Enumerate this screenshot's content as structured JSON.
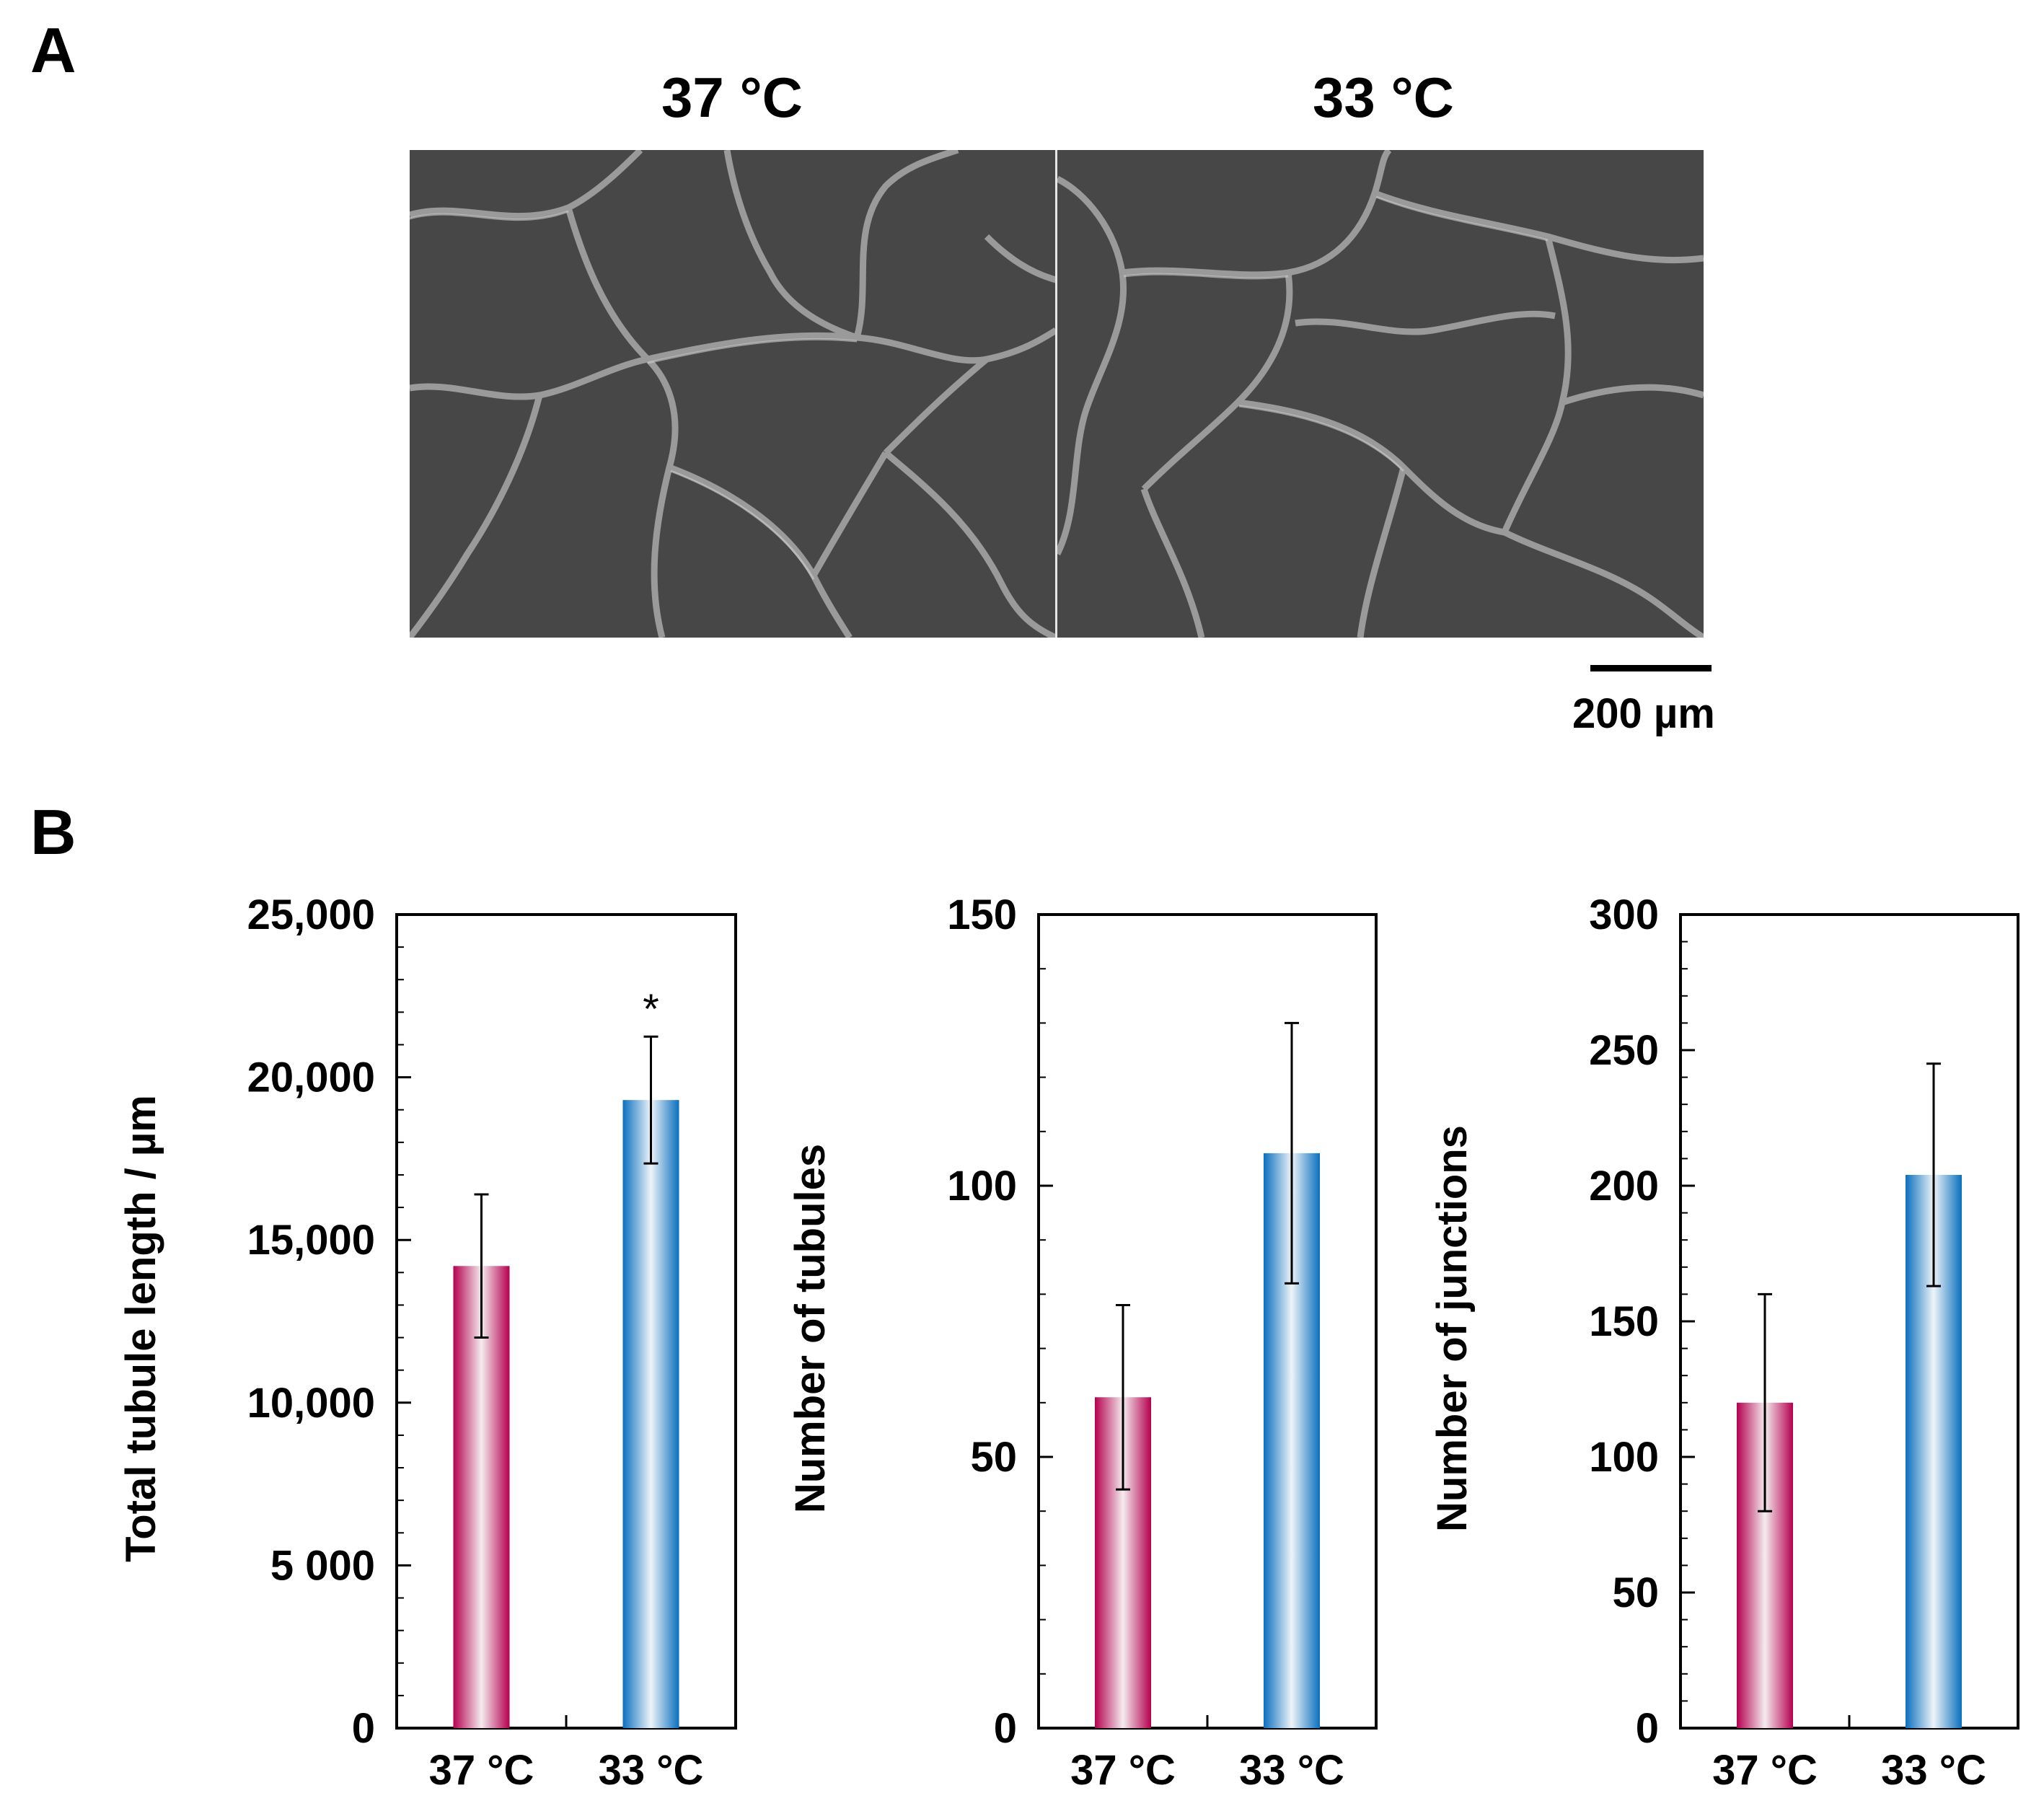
{
  "panel_a": {
    "letter": "A",
    "images": [
      {
        "label": "37 °C",
        "description": "micrograph-37"
      },
      {
        "label": "33 °C",
        "description": "micrograph-33"
      }
    ],
    "scale_bar_label": "200 µm"
  },
  "panel_b": {
    "letter": "B"
  },
  "colors": {
    "red": "#b5004f",
    "blue": "#0a6fbf",
    "axis": "#000000"
  },
  "chart_data": [
    {
      "type": "bar",
      "ylabel": "Total tubule length / µm",
      "categories": [
        "37 °C",
        "33 °C"
      ],
      "values": [
        14200,
        19300
      ],
      "errors": [
        2200,
        1950
      ],
      "ylim": [
        0,
        25000
      ],
      "yticks": [
        0,
        5000,
        10000,
        15000,
        20000,
        25000
      ],
      "ytick_labels": [
        "0",
        "5 000",
        "10,000",
        "15,000",
        "20,000",
        "25,000"
      ],
      "minor_step": 1000,
      "annotations": [
        "",
        "*"
      ]
    },
    {
      "type": "bar",
      "ylabel": "Number of tubules",
      "categories": [
        "37 °C",
        "33 °C"
      ],
      "values": [
        61,
        106
      ],
      "errors": [
        17,
        24
      ],
      "ylim": [
        0,
        150
      ],
      "yticks": [
        0,
        50,
        100,
        150
      ],
      "ytick_labels": [
        "0",
        "50",
        "100",
        "150"
      ],
      "minor_step": 10,
      "annotations": [
        "",
        ""
      ]
    },
    {
      "type": "bar",
      "ylabel": "Number of junctions",
      "categories": [
        "37 °C",
        "33 °C"
      ],
      "values": [
        120,
        204
      ],
      "errors": [
        40,
        41
      ],
      "ylim": [
        0,
        300
      ],
      "yticks": [
        0,
        50,
        100,
        150,
        200,
        250,
        300
      ],
      "ytick_labels": [
        "0",
        "50",
        "100",
        "150",
        "200",
        "250",
        "300"
      ],
      "minor_step": 10,
      "annotations": [
        "",
        ""
      ]
    }
  ]
}
